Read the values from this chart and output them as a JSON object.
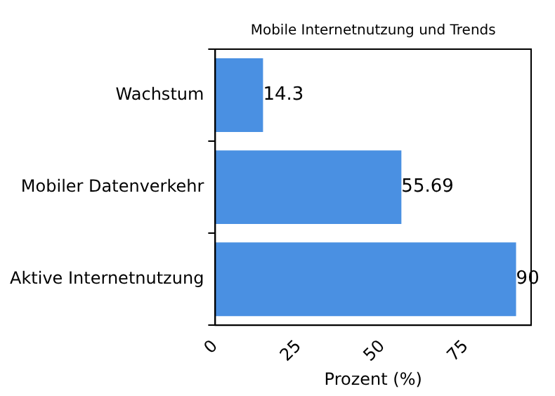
{
  "chart_data": {
    "type": "bar",
    "orientation": "horizontal",
    "title": "Mobile Internetnutzung und Trends",
    "xlabel": "Prozent (%)",
    "categories": [
      "Wachstum",
      "Mobiler Datenverkehr",
      "Aktive Internetnutzung"
    ],
    "values": [
      14.3,
      55.69,
      90
    ],
    "color": "#4a90e2",
    "data_labels": true,
    "grid": false,
    "legend": false,
    "xlim": [
      0,
      94.5
    ],
    "xticks": [
      0,
      25,
      50,
      75
    ]
  }
}
